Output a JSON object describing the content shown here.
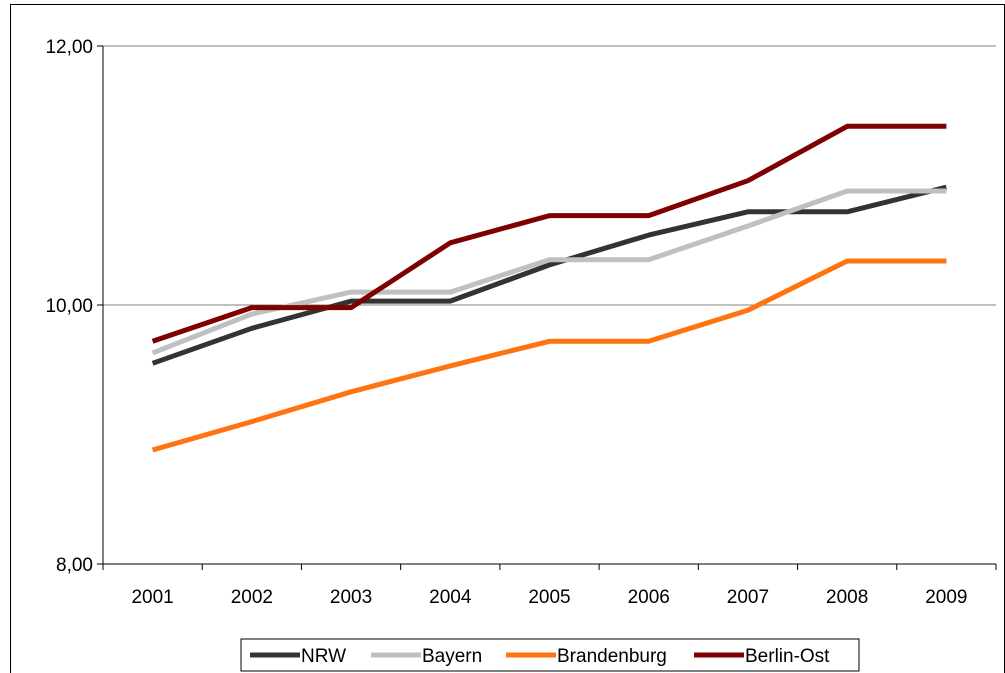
{
  "chart_data": {
    "type": "line",
    "categories": [
      "2001",
      "2002",
      "2003",
      "2004",
      "2005",
      "2006",
      "2007",
      "2008",
      "2009"
    ],
    "ylim": [
      8,
      12
    ],
    "yticks": [
      8,
      10,
      12
    ],
    "ytick_labels": [
      "8,00",
      "10,00",
      "12,00"
    ],
    "grid": "horizontal major gridline at 10,00",
    "legend_position": "bottom",
    "series": [
      {
        "name": "NRW",
        "color": "#333333",
        "values": [
          9.55,
          9.82,
          10.03,
          10.03,
          10.31,
          10.54,
          10.72,
          10.72,
          10.91
        ]
      },
      {
        "name": "Bayern",
        "color": "#c0c0c0",
        "values": [
          9.63,
          9.93,
          10.1,
          10.1,
          10.35,
          10.35,
          10.61,
          10.88,
          10.88
        ]
      },
      {
        "name": "Brandenburg",
        "color": "#ff7410",
        "values": [
          8.88,
          9.1,
          9.33,
          9.53,
          9.72,
          9.72,
          9.96,
          10.34,
          10.34
        ]
      },
      {
        "name": "Berlin-Ost",
        "color": "#7f0000",
        "values": [
          9.72,
          9.98,
          9.98,
          10.48,
          10.69,
          10.69,
          10.96,
          11.38,
          11.38
        ]
      }
    ]
  }
}
